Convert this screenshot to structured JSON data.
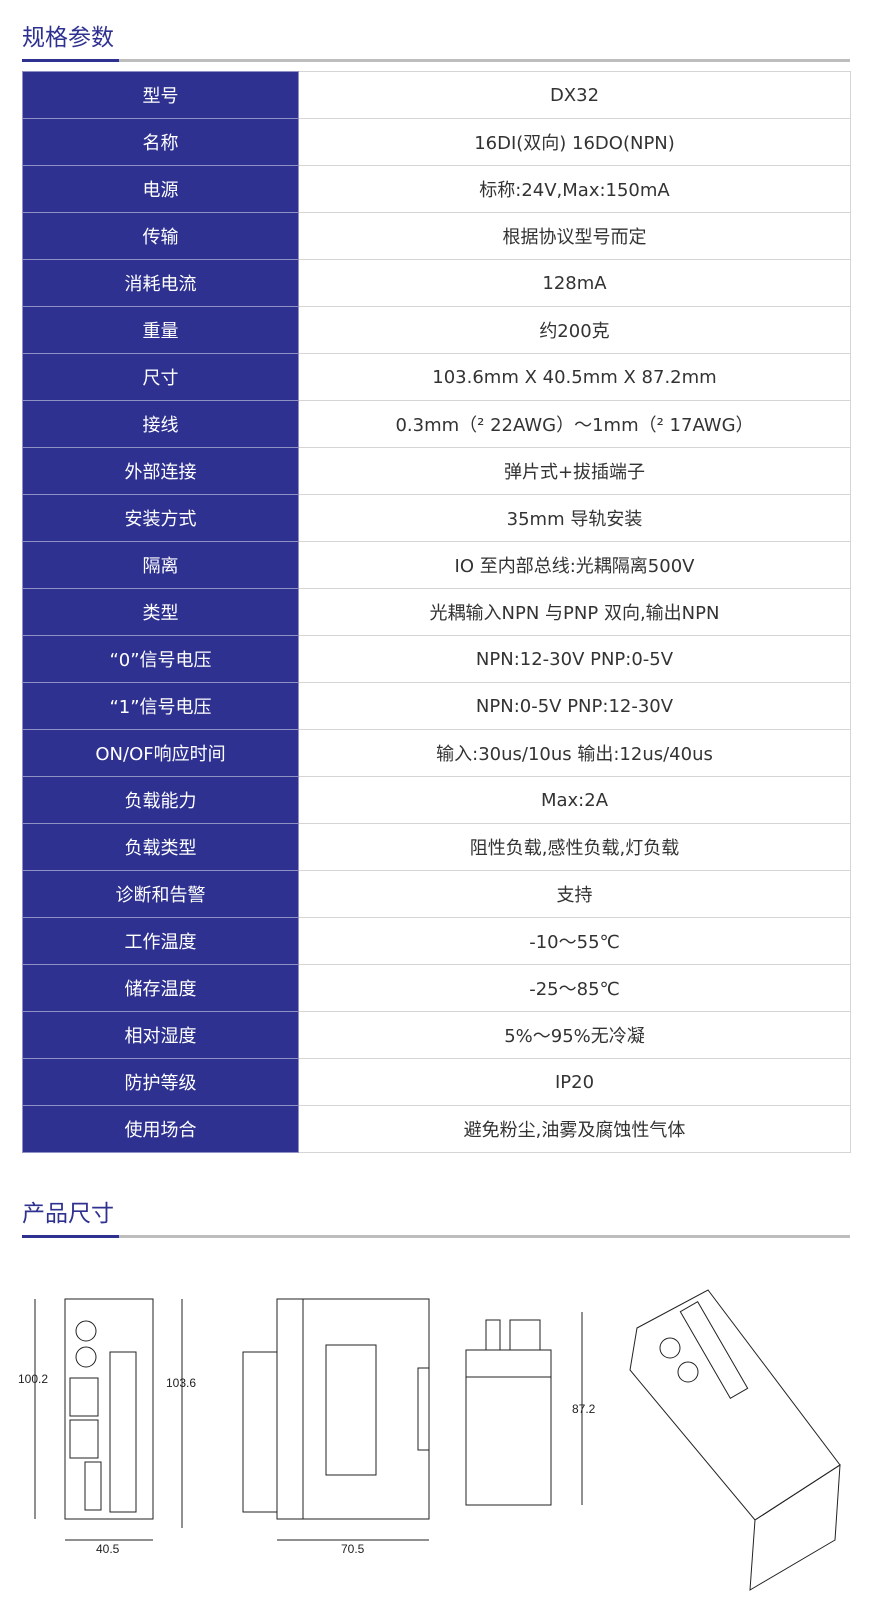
{
  "spec_title": "规格参数",
  "dim_title": "产品尺寸",
  "specs": [
    {
      "k": "型号",
      "v": "DX32"
    },
    {
      "k": "名称",
      "v": "16DI(双向) 16DO(NPN)"
    },
    {
      "k": "电源",
      "v": "标称:24V,Max:150mA"
    },
    {
      "k": "传输",
      "v": "根据协议型号而定"
    },
    {
      "k": "消耗电流",
      "v": "128mA"
    },
    {
      "k": "重量",
      "v": "约200克"
    },
    {
      "k": "尺寸",
      "v": "103.6mm X 40.5mm X 87.2mm"
    },
    {
      "k": "接线",
      "v": "0.3mm（² 22AWG）～1mm（² 17AWG）"
    },
    {
      "k": "外部连接",
      "v": "弹片式+拔插端子"
    },
    {
      "k": "安装方式",
      "v": "35mm 导轨安装"
    },
    {
      "k": "隔离",
      "v": "IO 至内部总线:光耦隔离500V"
    },
    {
      "k": "类型",
      "v": "光耦输入NPN 与PNP 双向,输出NPN"
    },
    {
      "k": "“0”信号电压",
      "v": "NPN:12-30V PNP:0-5V"
    },
    {
      "k": "“1”信号电压",
      "v": "NPN:0-5V PNP:12-30V"
    },
    {
      "k": "ON/OF响应时间",
      "v": "输入:30us/10us 输出:12us/40us"
    },
    {
      "k": "负载能力",
      "v": "Max:2A"
    },
    {
      "k": "负载类型",
      "v": "阻性负载,感性负载,灯负载"
    },
    {
      "k": "诊断和告警",
      "v": "支持"
    },
    {
      "k": "工作温度",
      "v": "-10～55℃"
    },
    {
      "k": "储存温度",
      "v": "-25～85℃"
    },
    {
      "k": "相对湿度",
      "v": "5%～95%无冷凝"
    },
    {
      "k": "防护等级",
      "v": "IP20"
    },
    {
      "k": "使用场合",
      "v": "避免粉尘,油雾及腐蚀性气体"
    }
  ],
  "dims": {
    "height_a": "100.2",
    "height_b": "103.6",
    "width": "40.5",
    "depth": "70.5",
    "side_h": "87.2"
  }
}
